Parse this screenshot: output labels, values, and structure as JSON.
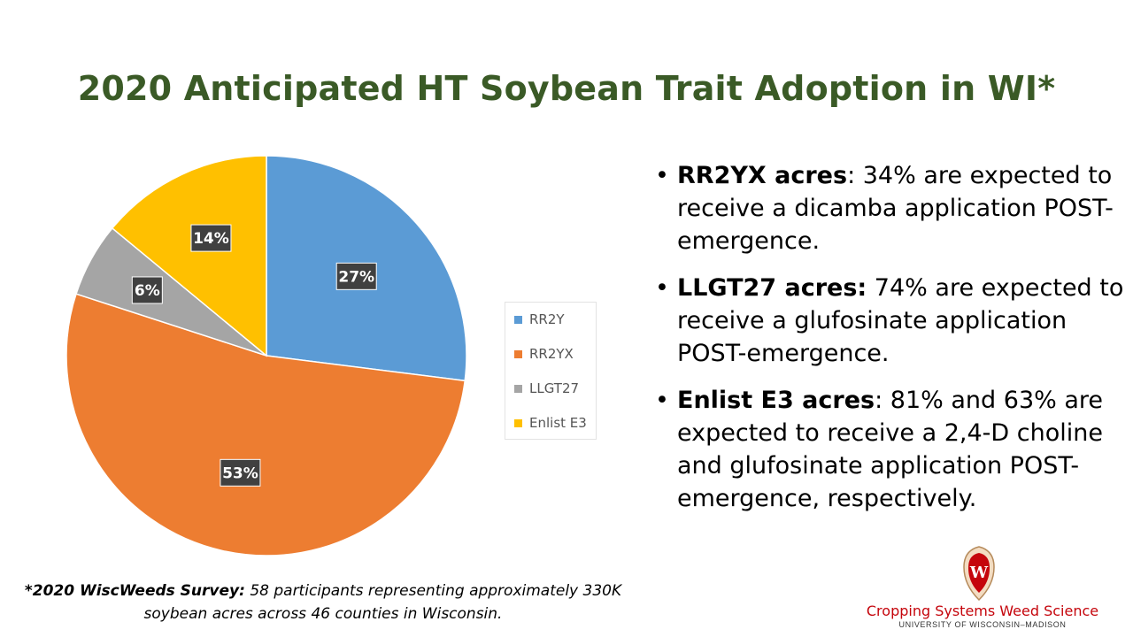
{
  "title": "2020 Anticipated HT Soybean Trait Adoption in WI*",
  "chart_data": {
    "type": "pie",
    "categories": [
      "RR2Y",
      "RR2YX",
      "LLGT27",
      "Enlist E3"
    ],
    "values": [
      27,
      53,
      6,
      14
    ],
    "data_labels": [
      "27%",
      "53%",
      "6%",
      "14%"
    ],
    "colors": [
      "#5b9bd5",
      "#ed7d31",
      "#a5a5a5",
      "#ffc000"
    ],
    "legend_position": "right"
  },
  "bullets": [
    {
      "lead": "RR2YX acres",
      "text": ": 34% are expected to receive a dicamba application POST-emergence."
    },
    {
      "lead": "LLGT27 acres:",
      "text": " 74% are expected to receive a glufosinate application POST-emergence."
    },
    {
      "lead": "Enlist E3 acres",
      "text": ": 81% and 63% are expected to receive a 2,4-D choline and glufosinate application POST-emergence, respectively."
    }
  ],
  "bullet_char": "•",
  "footnote": {
    "lead": "*2020 WiscWeeds Survey:",
    "text": " 58 participants representing approximately 330K soybean acres across 46 counties in Wisconsin."
  },
  "brand": {
    "name": "Cropping Systems Weed Science",
    "sub": "UNIVERSITY OF WISCONSIN–MADISON",
    "crest_letter": "W",
    "crest_color": "#c5050c",
    "crest_icon": "uw-crest-icon"
  }
}
